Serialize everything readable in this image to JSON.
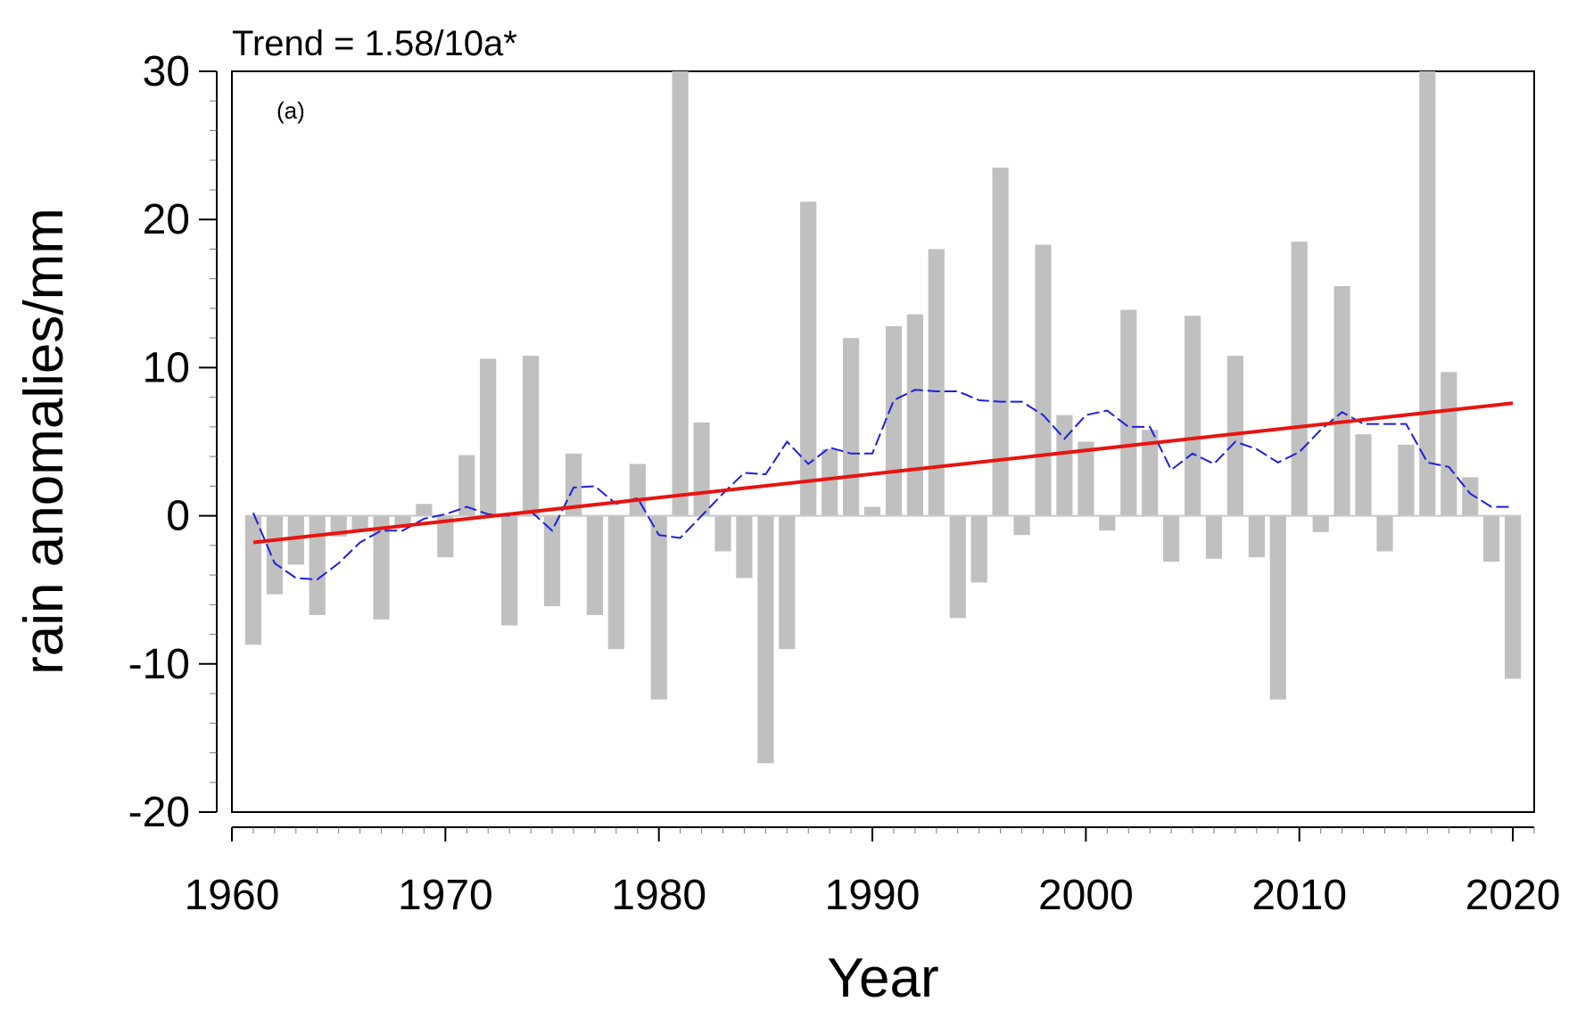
{
  "chart_data": {
    "type": "bar",
    "title": "",
    "trend_label": "Trend = 1.58/10a*",
    "panel_label": "(a)",
    "xlabel": "Year",
    "ylabel": "rain anomalies/mm",
    "xlim": [
      1960,
      2021
    ],
    "ylim": [
      -20,
      30
    ],
    "x_ticks": [
      1960,
      1970,
      1980,
      1990,
      2000,
      2010,
      2020
    ],
    "x_tick_labels": [
      "1960",
      "1970",
      "1980",
      "1990",
      "2000",
      "2010",
      "2020"
    ],
    "y_ticks": [
      -20,
      -10,
      0,
      10,
      20,
      30
    ],
    "y_tick_labels": [
      "-20",
      "-10",
      "0",
      "10",
      "20",
      "30"
    ],
    "grid": false,
    "colors": {
      "bars": "#c0c0c0",
      "trend": "#e8140f",
      "smooth": "#1f1fe0",
      "axis": "#000000"
    },
    "series": [
      {
        "name": "rain anomalies",
        "type": "bar",
        "x": [
          1961,
          1962,
          1963,
          1964,
          1965,
          1966,
          1967,
          1968,
          1969,
          1970,
          1971,
          1972,
          1973,
          1974,
          1975,
          1976,
          1977,
          1978,
          1979,
          1980,
          1981,
          1982,
          1983,
          1984,
          1985,
          1986,
          1987,
          1988,
          1989,
          1990,
          1991,
          1992,
          1993,
          1994,
          1995,
          1996,
          1997,
          1998,
          1999,
          2000,
          2001,
          2002,
          2003,
          2004,
          2005,
          2006,
          2007,
          2008,
          2009,
          2010,
          2011,
          2012,
          2013,
          2014,
          2015,
          2016,
          2017,
          2018,
          2019,
          2020
        ],
        "values": [
          -8.7,
          -5.3,
          -3.3,
          -6.7,
          -1.4,
          -1.0,
          -7.0,
          -0.8,
          0.8,
          -2.8,
          4.1,
          10.6,
          -7.4,
          10.8,
          -6.1,
          4.2,
          -6.7,
          -9.0,
          3.5,
          -12.4,
          30.0,
          6.3,
          -2.4,
          -4.2,
          -16.7,
          -9.0,
          21.2,
          4.5,
          12.0,
          0.6,
          12.8,
          13.6,
          18.0,
          -6.9,
          -4.5,
          23.5,
          -1.3,
          18.3,
          6.8,
          5.0,
          -1.0,
          13.9,
          5.8,
          -3.1,
          13.5,
          -2.9,
          10.8,
          -2.8,
          -12.4,
          18.5,
          -1.1,
          15.5,
          5.5,
          -2.4,
          4.8,
          30.0,
          9.7,
          2.6,
          -3.1,
          -11.0
        ]
      },
      {
        "name": "smoothed",
        "type": "line",
        "style": "dashed",
        "x": [
          1961,
          1962,
          1963,
          1964,
          1965,
          1966,
          1967,
          1968,
          1969,
          1970,
          1971,
          1972,
          1973,
          1974,
          1975,
          1976,
          1977,
          1978,
          1979,
          1980,
          1981,
          1982,
          1983,
          1984,
          1985,
          1986,
          1987,
          1988,
          1989,
          1990,
          1991,
          1992,
          1993,
          1994,
          1995,
          1996,
          1997,
          1998,
          1999,
          2000,
          2001,
          2002,
          2003,
          2004,
          2005,
          2006,
          2007,
          2008,
          2009,
          2010,
          2011,
          2012,
          2013,
          2014,
          2015,
          2016,
          2017,
          2018,
          2019,
          2020
        ],
        "values": [
          0.2,
          -3.2,
          -4.2,
          -4.3,
          -3.2,
          -1.8,
          -1.0,
          -1.0,
          -0.2,
          0.1,
          0.6,
          0.1,
          0.0,
          0.3,
          -1.0,
          1.9,
          2.0,
          0.8,
          1.2,
          -1.3,
          -1.5,
          0.0,
          1.5,
          2.9,
          2.8,
          5.0,
          3.5,
          4.6,
          4.2,
          4.2,
          7.8,
          8.5,
          8.4,
          8.4,
          7.8,
          7.7,
          7.7,
          6.8,
          5.2,
          6.8,
          7.1,
          6.0,
          6.0,
          3.1,
          4.2,
          3.5,
          5.0,
          4.5,
          3.6,
          4.3,
          5.8,
          7.0,
          6.2,
          6.2,
          6.2,
          3.6,
          3.3,
          1.5,
          0.6,
          0.6
        ]
      },
      {
        "name": "linear trend",
        "type": "line",
        "x": [
          1961,
          2020
        ],
        "values": [
          -1.8,
          7.6
        ]
      }
    ]
  }
}
